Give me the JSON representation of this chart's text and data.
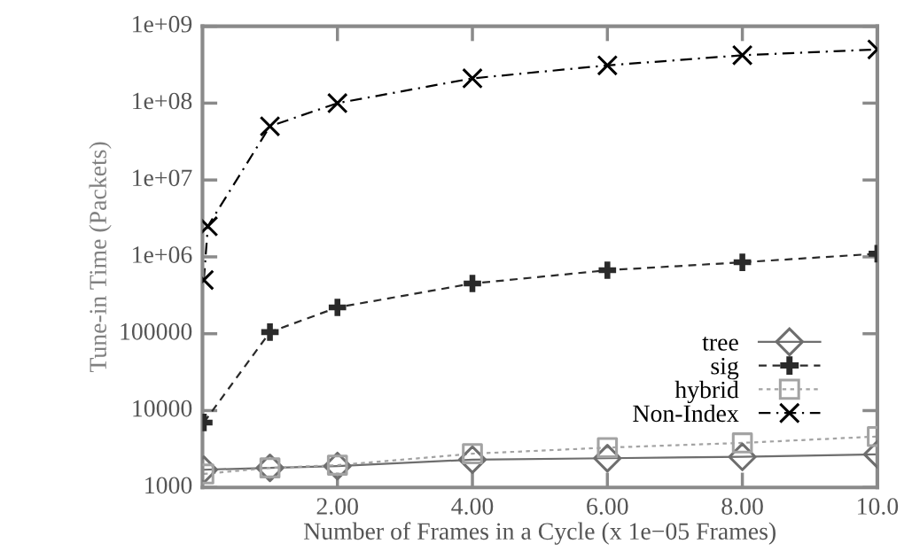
{
  "chart_data": {
    "type": "line",
    "xlabel": "Number of Frames in a Cycle (x 1e−05 Frames)",
    "ylabel": "Tune-in Time (Packets)",
    "log": "y",
    "grid": false,
    "legend": "bottom right",
    "xlim": [
      0,
      10
    ],
    "xticks": [
      {
        "value": 2,
        "label": "2.00"
      },
      {
        "value": 4,
        "label": "4.00"
      },
      {
        "value": 6,
        "label": "6.00"
      },
      {
        "value": 8,
        "label": "8.00"
      },
      {
        "value": 10,
        "label": "10.0"
      }
    ],
    "ylim": [
      1000,
      1000000000
    ],
    "yticks": [
      1000,
      10000,
      100000,
      {
        "value": 1000000,
        "label": "1e+06"
      },
      {
        "value": 10000000,
        "label": "1e+07"
      },
      {
        "value": 100000000,
        "label": "1e+08"
      },
      {
        "value": 1000000000,
        "label": "1e+09"
      }
    ],
    "series": [
      {
        "name": "tree",
        "color": "#6e6e6e",
        "marker": "diamond",
        "line_style": "solid",
        "x": [
          0.02,
          1,
          2,
          4,
          6,
          8,
          10
        ],
        "values": [
          1700,
          1800,
          1900,
          2300,
          2400,
          2500,
          2700
        ]
      },
      {
        "name": "sig",
        "color": "#2a2a2a",
        "marker": "cross",
        "line_style": "dashed",
        "x": [
          0.02,
          1,
          2,
          4,
          6,
          8,
          10
        ],
        "values": [
          7000,
          105000,
          220000,
          450000,
          670000,
          850000,
          1100000
        ]
      },
      {
        "name": "hybrid",
        "color": "#a3a3a3",
        "marker": "square",
        "line_style": "dotted",
        "x": [
          0.02,
          1,
          2,
          4,
          6,
          8,
          10
        ],
        "values": [
          1500,
          1800,
          1950,
          2750,
          3300,
          3800,
          4600
        ]
      },
      {
        "name": "Non-Index",
        "color": "#000000",
        "marker": "x",
        "line_style": "dashdot",
        "x": [
          0.02,
          0.08,
          1,
          2,
          4,
          6,
          8,
          10
        ],
        "values": [
          500000,
          2500000,
          50000000,
          100000000,
          210000000,
          310000000,
          420000000,
          500000000
        ]
      }
    ]
  }
}
